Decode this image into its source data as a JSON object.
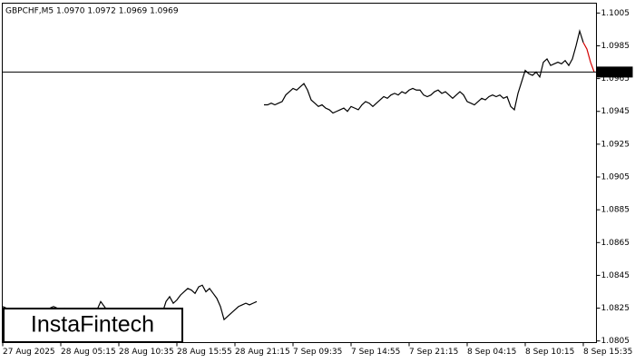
{
  "chart_data": {
    "type": "line",
    "title": "GBPCHF,M5  1.0970 1.0972 1.0969 1.0969",
    "watermark": "InstaFintech",
    "last_price": 1.0969,
    "ylim": [
      1.0804,
      1.1011
    ],
    "yticks": [
      1.1005,
      1.0985,
      1.0965,
      1.0945,
      1.0925,
      1.0905,
      1.0885,
      1.0865,
      1.0845,
      1.0825,
      1.0805
    ],
    "categories": [
      "27 Aug 2025",
      null,
      null,
      null,
      null,
      null,
      null,
      null,
      null,
      null,
      null,
      null,
      null,
      null,
      null,
      null,
      "28 Aug 05:15",
      null,
      null,
      null,
      null,
      null,
      null,
      null,
      null,
      null,
      null,
      null,
      null,
      null,
      null,
      null,
      "28 Aug 10:35",
      null,
      null,
      null,
      null,
      null,
      null,
      null,
      null,
      null,
      null,
      null,
      null,
      null,
      null,
      null,
      "28 Aug 15:55",
      null,
      null,
      null,
      null,
      null,
      null,
      null,
      null,
      null,
      null,
      null,
      null,
      null,
      null,
      null,
      "28 Aug 21:15",
      null,
      null,
      null,
      null,
      null,
      null,
      null,
      null,
      null,
      null,
      null,
      null,
      null,
      null,
      null,
      "7 Sep 09:35",
      null,
      null,
      null,
      null,
      null,
      null,
      null,
      null,
      null,
      null,
      null,
      null,
      null,
      null,
      null,
      "7 Sep 14:55",
      null,
      null,
      null,
      null,
      null,
      null,
      null,
      null,
      null,
      null,
      null,
      null,
      null,
      null,
      null,
      "7 Sep 21:15",
      null,
      null,
      null,
      null,
      null,
      null,
      null,
      null,
      null,
      null,
      null,
      null,
      null,
      null,
      null,
      "8 Sep 04:15",
      null,
      null,
      null,
      null,
      null,
      null,
      null,
      null,
      null,
      null,
      null,
      null,
      null,
      null,
      null,
      "8 Sep 10:15",
      null,
      null,
      null,
      null,
      null,
      null,
      null,
      null,
      null,
      null,
      null,
      null,
      null,
      null,
      null,
      "8 Sep 15:35",
      null,
      null,
      null
    ],
    "series": [
      {
        "color": "#000000",
        "values": [
          1.0826,
          1.0825,
          1.0824,
          1.0823,
          1.0824,
          1.0823,
          1.0822,
          1.0823,
          1.0824,
          1.0823,
          1.0822,
          1.0823,
          1.0824,
          1.0825,
          1.0826,
          1.0825,
          1.0824,
          1.0825,
          1.0824,
          1.0823,
          1.0824,
          1.0823,
          1.0822,
          1.0823,
          1.0824,
          1.0825,
          1.0824,
          1.0829,
          1.0826,
          1.0823,
          1.0822,
          1.0821,
          1.0822,
          1.0823,
          1.0822,
          1.0821,
          1.0822,
          1.0823,
          1.0822,
          1.0821,
          1.0822,
          1.0823,
          1.0822,
          1.0821,
          1.0822,
          1.0829,
          1.0832,
          1.0828,
          1.083,
          1.0833,
          1.0835,
          1.0837,
          1.0836,
          1.0834,
          1.0838,
          1.0839,
          1.0835,
          1.0837,
          1.0834,
          1.0831,
          1.0826,
          1.0818,
          1.082,
          1.0822,
          1.0824,
          1.0826,
          1.0827,
          1.0828,
          1.0827,
          1.0828,
          1.0829,
          null,
          1.0949,
          1.0949,
          1.095,
          1.0949,
          1.095,
          1.0951,
          1.0955,
          1.0957,
          1.0959,
          1.0958,
          1.096,
          1.0962,
          1.0958,
          1.0952,
          1.095,
          1.0948,
          1.0949,
          1.0947,
          1.0946,
          1.0944,
          1.0945,
          1.0946,
          1.0947,
          1.0945,
          1.0948,
          1.0947,
          1.0946,
          1.0949,
          1.0951,
          1.095,
          1.0948,
          1.095,
          1.0952,
          1.0954,
          1.0953,
          1.0955,
          1.0956,
          1.0955,
          1.0957,
          1.0956,
          1.0958,
          1.0959,
          1.0958,
          1.0958,
          1.0955,
          1.0954,
          1.0955,
          1.0957,
          1.0958,
          1.0956,
          1.0957,
          1.0955,
          1.0953,
          1.0955,
          1.0957,
          1.0955,
          1.0951,
          1.095,
          1.0949,
          1.0951,
          1.0953,
          1.0952,
          1.0954,
          1.0955,
          1.0954,
          1.0955,
          1.0953,
          1.0954,
          1.0948,
          1.0946,
          1.0956,
          1.0963,
          1.097,
          1.0968,
          1.0967,
          1.0969,
          1.0966,
          1.0975,
          1.0977,
          1.0973,
          1.0974,
          1.0975,
          1.0974,
          1.0976,
          1.0973,
          1.0977,
          1.0985,
          1.0994,
          1.0987,
          null,
          null,
          null
        ]
      },
      {
        "color": "#d40000",
        "values": [
          null,
          null,
          null,
          null,
          null,
          null,
          null,
          null,
          null,
          null,
          null,
          null,
          null,
          null,
          null,
          null,
          null,
          null,
          null,
          null,
          null,
          null,
          null,
          null,
          null,
          null,
          null,
          null,
          null,
          null,
          null,
          null,
          null,
          null,
          null,
          null,
          null,
          null,
          null,
          null,
          null,
          null,
          null,
          null,
          null,
          null,
          null,
          null,
          null,
          null,
          null,
          null,
          null,
          null,
          null,
          null,
          null,
          null,
          null,
          null,
          null,
          null,
          null,
          null,
          null,
          null,
          null,
          null,
          null,
          null,
          null,
          null,
          null,
          null,
          null,
          null,
          null,
          null,
          null,
          null,
          null,
          null,
          null,
          null,
          null,
          null,
          null,
          null,
          null,
          null,
          null,
          null,
          null,
          null,
          null,
          null,
          null,
          null,
          null,
          null,
          null,
          null,
          null,
          null,
          null,
          null,
          null,
          null,
          null,
          null,
          null,
          null,
          null,
          null,
          null,
          null,
          null,
          null,
          null,
          null,
          null,
          null,
          null,
          null,
          null,
          null,
          null,
          null,
          null,
          null,
          null,
          null,
          null,
          null,
          null,
          null,
          null,
          null,
          null,
          null,
          null,
          null,
          null,
          null,
          null,
          null,
          null,
          null,
          null,
          null,
          null,
          null,
          null,
          null,
          null,
          null,
          null,
          null,
          null,
          null,
          1.0987,
          1.0983,
          1.0975,
          1.0969
        ]
      }
    ]
  }
}
